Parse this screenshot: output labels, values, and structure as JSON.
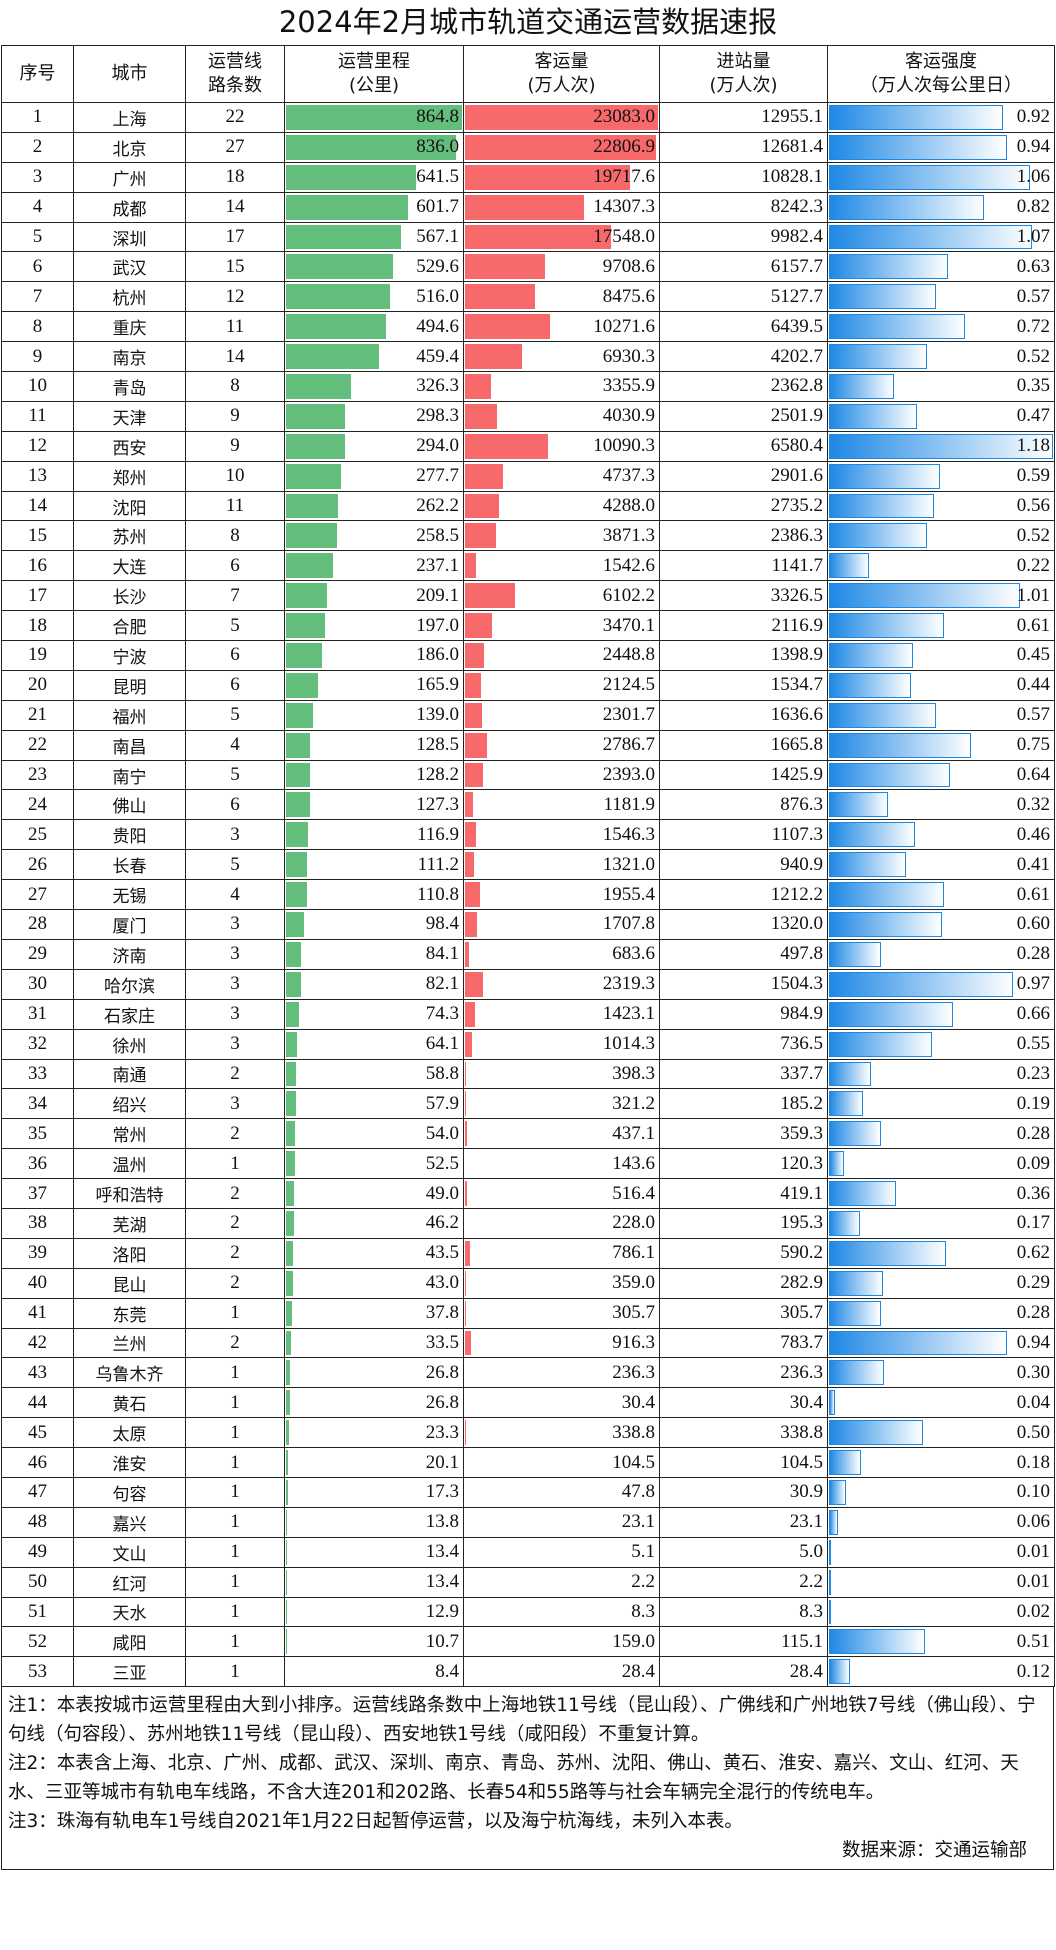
{
  "title": "2024年2月城市轨道交通运营数据速报",
  "headers": [
    "序号",
    "城市",
    "运营线路条数",
    "运营里程(公里)",
    "客运量(万人次)",
    "进站量(万人次)",
    "客运强度（万人次每公里日）"
  ],
  "header_lines": [
    [
      "序号"
    ],
    [
      "城市"
    ],
    [
      "运营线",
      "路条数"
    ],
    [
      "运营里程",
      "(公里)"
    ],
    [
      "客运量",
      "(万人次)"
    ],
    [
      "进站量",
      "(万人次)"
    ],
    [
      "客运强度",
      "（万人次每公里日）"
    ]
  ],
  "colors": {
    "mileage_bar": "#63be7b",
    "passenger_bar": "#f8696b",
    "intensity_bar": "#1e88e5"
  },
  "rows": [
    [
      "1",
      "上海",
      "22",
      "864.8",
      "23083.0",
      "12955.1",
      "0.92"
    ],
    [
      "2",
      "北京",
      "27",
      "836.0",
      "22806.9",
      "12681.4",
      "0.94"
    ],
    [
      "3",
      "广州",
      "18",
      "641.5",
      "19717.6",
      "10828.1",
      "1.06"
    ],
    [
      "4",
      "成都",
      "14",
      "601.7",
      "14307.3",
      "8242.3",
      "0.82"
    ],
    [
      "5",
      "深圳",
      "17",
      "567.1",
      "17548.0",
      "9982.4",
      "1.07"
    ],
    [
      "6",
      "武汉",
      "15",
      "529.6",
      "9708.6",
      "6157.7",
      "0.63"
    ],
    [
      "7",
      "杭州",
      "12",
      "516.0",
      "8475.6",
      "5127.7",
      "0.57"
    ],
    [
      "8",
      "重庆",
      "11",
      "494.6",
      "10271.6",
      "6439.5",
      "0.72"
    ],
    [
      "9",
      "南京",
      "14",
      "459.4",
      "6930.3",
      "4202.7",
      "0.52"
    ],
    [
      "10",
      "青岛",
      "8",
      "326.3",
      "3355.9",
      "2362.8",
      "0.35"
    ],
    [
      "11",
      "天津",
      "9",
      "298.3",
      "4030.9",
      "2501.9",
      "0.47"
    ],
    [
      "12",
      "西安",
      "9",
      "294.0",
      "10090.3",
      "6580.4",
      "1.18"
    ],
    [
      "13",
      "郑州",
      "10",
      "277.7",
      "4737.3",
      "2901.6",
      "0.59"
    ],
    [
      "14",
      "沈阳",
      "11",
      "262.2",
      "4288.0",
      "2735.2",
      "0.56"
    ],
    [
      "15",
      "苏州",
      "8",
      "258.5",
      "3871.3",
      "2386.3",
      "0.52"
    ],
    [
      "16",
      "大连",
      "6",
      "237.1",
      "1542.6",
      "1141.7",
      "0.22"
    ],
    [
      "17",
      "长沙",
      "7",
      "209.1",
      "6102.2",
      "3326.5",
      "1.01"
    ],
    [
      "18",
      "合肥",
      "5",
      "197.0",
      "3470.1",
      "2116.9",
      "0.61"
    ],
    [
      "19",
      "宁波",
      "6",
      "186.0",
      "2448.8",
      "1398.9",
      "0.45"
    ],
    [
      "20",
      "昆明",
      "6",
      "165.9",
      "2124.5",
      "1534.7",
      "0.44"
    ],
    [
      "21",
      "福州",
      "5",
      "139.0",
      "2301.7",
      "1636.6",
      "0.57"
    ],
    [
      "22",
      "南昌",
      "4",
      "128.5",
      "2786.7",
      "1665.8",
      "0.75"
    ],
    [
      "23",
      "南宁",
      "5",
      "128.2",
      "2393.0",
      "1425.9",
      "0.64"
    ],
    [
      "24",
      "佛山",
      "6",
      "127.3",
      "1181.9",
      "876.3",
      "0.32"
    ],
    [
      "25",
      "贵阳",
      "3",
      "116.9",
      "1546.3",
      "1107.3",
      "0.46"
    ],
    [
      "26",
      "长春",
      "5",
      "111.2",
      "1321.0",
      "940.9",
      "0.41"
    ],
    [
      "27",
      "无锡",
      "4",
      "110.8",
      "1955.4",
      "1212.2",
      "0.61"
    ],
    [
      "28",
      "厦门",
      "3",
      "98.4",
      "1707.8",
      "1320.0",
      "0.60"
    ],
    [
      "29",
      "济南",
      "3",
      "84.1",
      "683.6",
      "497.8",
      "0.28"
    ],
    [
      "30",
      "哈尔滨",
      "3",
      "82.1",
      "2319.3",
      "1504.3",
      "0.97"
    ],
    [
      "31",
      "石家庄",
      "3",
      "74.3",
      "1423.1",
      "984.9",
      "0.66"
    ],
    [
      "32",
      "徐州",
      "3",
      "64.1",
      "1014.3",
      "736.5",
      "0.55"
    ],
    [
      "33",
      "南通",
      "2",
      "58.8",
      "398.3",
      "337.7",
      "0.23"
    ],
    [
      "34",
      "绍兴",
      "3",
      "57.9",
      "321.2",
      "185.2",
      "0.19"
    ],
    [
      "35",
      "常州",
      "2",
      "54.0",
      "437.1",
      "359.3",
      "0.28"
    ],
    [
      "36",
      "温州",
      "1",
      "52.5",
      "143.6",
      "120.3",
      "0.09"
    ],
    [
      "37",
      "呼和浩特",
      "2",
      "49.0",
      "516.4",
      "419.1",
      "0.36"
    ],
    [
      "38",
      "芜湖",
      "2",
      "46.2",
      "228.0",
      "195.3",
      "0.17"
    ],
    [
      "39",
      "洛阳",
      "2",
      "43.5",
      "786.1",
      "590.2",
      "0.62"
    ],
    [
      "40",
      "昆山",
      "2",
      "43.0",
      "359.0",
      "282.9",
      "0.29"
    ],
    [
      "41",
      "东莞",
      "1",
      "37.8",
      "305.7",
      "305.7",
      "0.28"
    ],
    [
      "42",
      "兰州",
      "2",
      "33.5",
      "916.3",
      "783.7",
      "0.94"
    ],
    [
      "43",
      "乌鲁木齐",
      "1",
      "26.8",
      "236.3",
      "236.3",
      "0.30"
    ],
    [
      "44",
      "黄石",
      "1",
      "26.8",
      "30.4",
      "30.4",
      "0.04"
    ],
    [
      "45",
      "太原",
      "1",
      "23.3",
      "338.8",
      "338.8",
      "0.50"
    ],
    [
      "46",
      "淮安",
      "1",
      "20.1",
      "104.5",
      "104.5",
      "0.18"
    ],
    [
      "47",
      "句容",
      "1",
      "17.3",
      "47.8",
      "30.9",
      "0.10"
    ],
    [
      "48",
      "嘉兴",
      "1",
      "13.8",
      "23.1",
      "23.1",
      "0.06"
    ],
    [
      "49",
      "文山",
      "1",
      "13.4",
      "5.1",
      "5.0",
      "0.01"
    ],
    [
      "50",
      "红河",
      "1",
      "13.4",
      "2.2",
      "2.2",
      "0.01"
    ],
    [
      "51",
      "天水",
      "1",
      "12.9",
      "8.3",
      "8.3",
      "0.02"
    ],
    [
      "52",
      "咸阳",
      "1",
      "10.7",
      "159.0",
      "115.1",
      "0.51"
    ],
    [
      "53",
      "三亚",
      "1",
      "8.4",
      "28.4",
      "28.4",
      "0.12"
    ]
  ],
  "notes": [
    "注1：本表按城市运营里程由大到小排序。运营线路条数中上海地铁11号线（昆山段）、广佛线和广州地铁7号线（佛山段）、宁句线（句容段）、苏州地铁11号线（昆山段）、西安地铁1号线（咸阳段）不重复计算。",
    "注2：本表含上海、北京、广州、成都、武汉、深圳、南京、青岛、苏州、沈阳、佛山、黄石、淮安、嘉兴、文山、红河、天水、三亚等城市有轨电车线路，不含大连201和202路、长春54和55路等与社会车辆完全混行的传统电车。",
    "注3：珠海有轨电车1号线自2021年1月22日起暂停运营，以及海宁杭海线，未列入本表。"
  ],
  "source": "数据来源：交通运输部"
}
